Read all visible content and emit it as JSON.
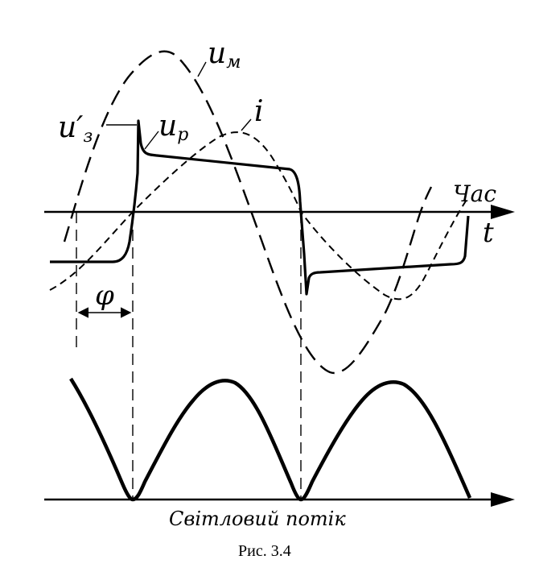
{
  "labels": {
    "u_m": "u",
    "u_m_sub": "м",
    "u_z": "u′",
    "u_z_sub": "з",
    "u_p": "u",
    "u_p_sub": "р",
    "i": "i",
    "time_axis": "Час",
    "t": "t",
    "phi": "φ",
    "light_flux": "Світловий потік"
  },
  "caption": "Рис. 3.4",
  "colors": {
    "ink": "#000000",
    "background": "#ffffff"
  }
}
